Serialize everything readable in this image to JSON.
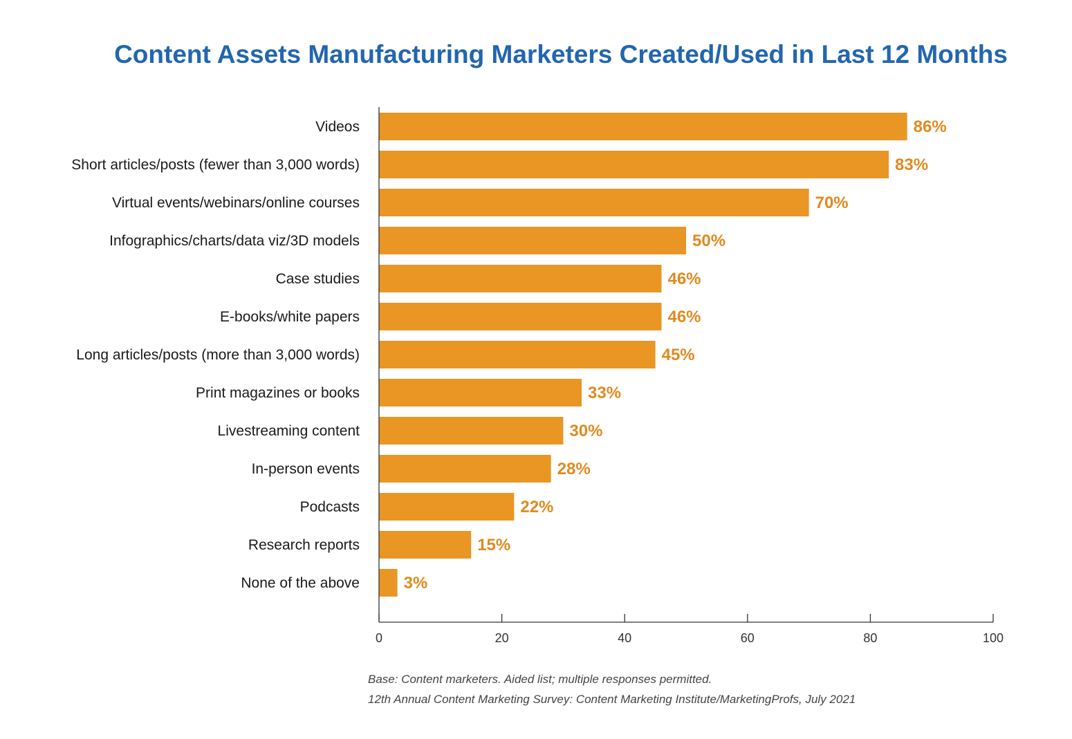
{
  "chart_data": {
    "type": "bar",
    "orientation": "horizontal",
    "title": "Content Assets Manufacturing Marketers Created/Used in Last 12 Months",
    "categories": [
      "Videos",
      "Short articles/posts (fewer than 3,000 words)",
      "Virtual events/webinars/online courses",
      "Infographics/charts/data viz/3D models",
      "Case studies",
      "E-books/white papers",
      "Long articles/posts (more than 3,000 words)",
      "Print magazines or books",
      "Livestreaming content",
      "In-person events",
      "Podcasts",
      "Research reports",
      "None of the above"
    ],
    "values": [
      86,
      83,
      70,
      50,
      46,
      46,
      45,
      33,
      30,
      28,
      22,
      15,
      3
    ],
    "value_labels": [
      "86%",
      "83%",
      "70%",
      "50%",
      "46%",
      "46%",
      "45%",
      "33%",
      "30%",
      "28%",
      "22%",
      "15%",
      "3%"
    ],
    "xlim": [
      0,
      100
    ],
    "xticks": [
      0,
      20,
      40,
      60,
      80,
      100
    ],
    "xlabel": "",
    "ylabel": "",
    "grid": false,
    "colors": {
      "bar": "#e99625",
      "value_label": "#e08a1e",
      "title": "#2266b0",
      "axis": "#333333"
    }
  },
  "footnotes": [
    "Base: Content marketers. Aided list; multiple responses permitted.",
    "12th Annual Content Marketing Survey: Content Marketing Institute/MarketingProfs, July 2021"
  ]
}
